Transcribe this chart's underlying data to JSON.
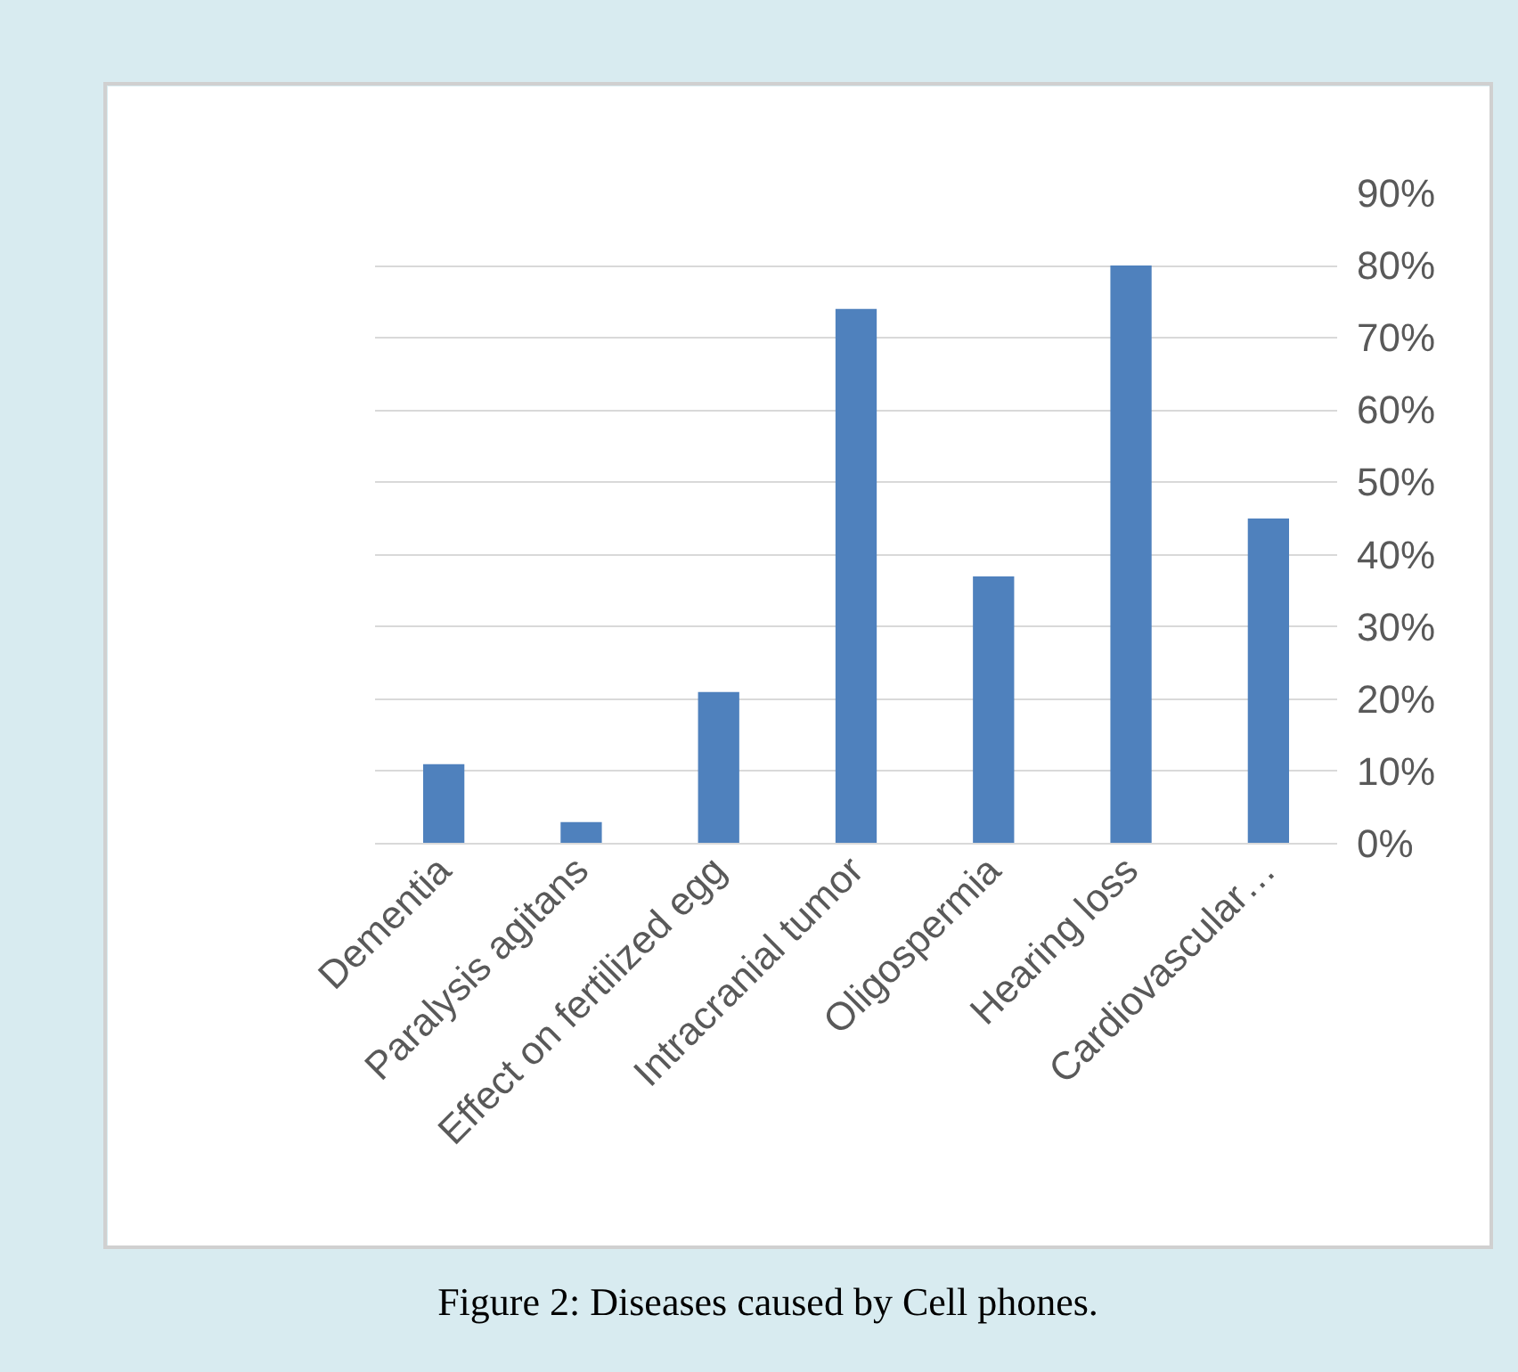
{
  "chart_data": {
    "type": "bar",
    "categories": [
      "Dementia",
      "Paralysis agitans",
      "Effect on fertilized egg",
      "Intracranial tumor",
      "Oligospermia",
      "Hearing loss",
      "Cardiovascular…"
    ],
    "values": [
      11,
      3,
      21,
      74,
      37,
      80,
      45
    ],
    "color": "#4f81bd",
    "ylim": [
      0,
      90
    ],
    "yticks": [
      {
        "value": 0,
        "label": "0%"
      },
      {
        "value": 10,
        "label": "10%"
      },
      {
        "value": 20,
        "label": "20%"
      },
      {
        "value": 30,
        "label": "30%"
      },
      {
        "value": 40,
        "label": "40%"
      },
      {
        "value": 50,
        "label": "50%"
      },
      {
        "value": 60,
        "label": "60%"
      },
      {
        "value": 70,
        "label": "70%"
      },
      {
        "value": 80,
        "label": "80%"
      },
      {
        "value": 90,
        "label": "90%"
      }
    ],
    "grid": "y",
    "annotations": [
      "Figure 2: Diseases caused by Cell phones."
    ]
  }
}
